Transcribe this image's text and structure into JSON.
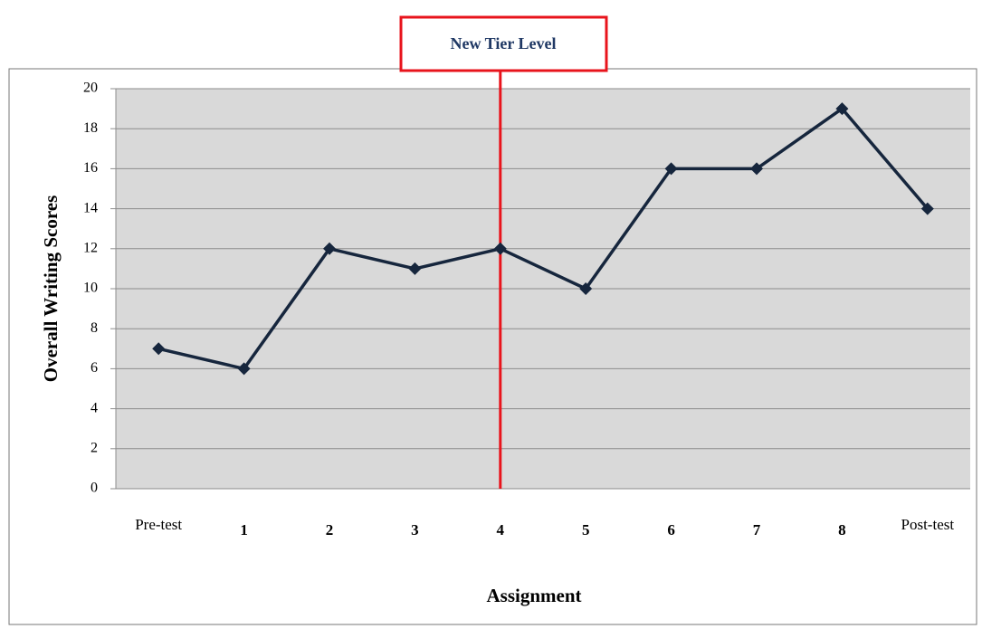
{
  "chart_data": {
    "type": "line",
    "annotation": {
      "text": "New Tier Level",
      "x": "4"
    },
    "x_label": "Assignment",
    "y_label": "Overall Writing Scores",
    "categories": [
      "Pre-test",
      "1",
      "2",
      "3",
      "4",
      "5",
      "6",
      "7",
      "8",
      "Post-test"
    ],
    "series": [
      {
        "name": "Overall Writing Scores",
        "color": "#16263d",
        "values": [
          7,
          6,
          12,
          11,
          12,
          10,
          16,
          16,
          19,
          14
        ]
      }
    ],
    "ylim": [
      0,
      20
    ],
    "yticks": [
      0,
      2,
      4,
      6,
      8,
      10,
      12,
      14,
      16,
      18,
      20
    ],
    "grid": true
  }
}
